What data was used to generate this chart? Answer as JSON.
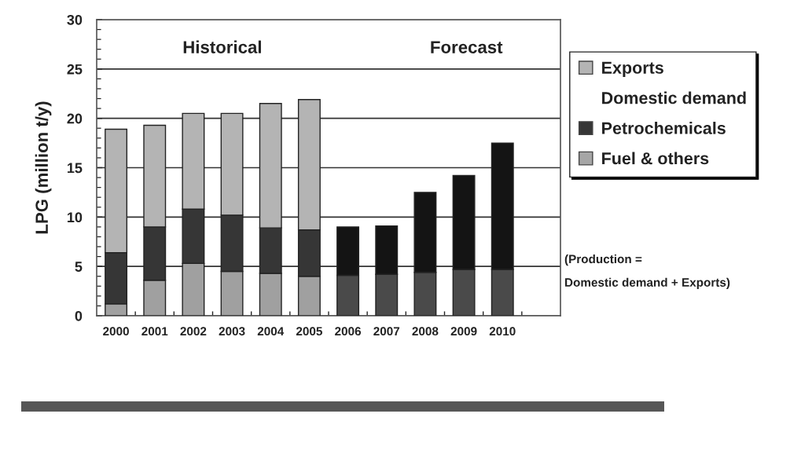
{
  "chart_data": {
    "type": "bar",
    "stacked": true,
    "categories": [
      "2000",
      "2001",
      "2002",
      "2003",
      "2004",
      "2005",
      "2006",
      "2007",
      "2008",
      "2009",
      "2010",
      null
    ],
    "ylabel": "LPG (million t/y)",
    "ylim": [
      0,
      30
    ],
    "yticks": [
      0,
      {
        "value": 1,
        "label": null
      },
      {
        "value": 2,
        "label": null
      },
      {
        "value": 3,
        "label": null
      },
      {
        "value": 4,
        "label": null
      },
      5,
      {
        "value": 6,
        "label": null
      },
      {
        "value": 7,
        "label": null
      },
      {
        "value": 8,
        "label": null
      },
      {
        "value": 9,
        "label": null
      },
      10,
      {
        "value": 11,
        "label": null
      },
      {
        "value": 12,
        "label": null
      },
      {
        "value": 13,
        "label": null
      },
      {
        "value": 14,
        "label": null
      },
      15,
      {
        "value": 16,
        "label": null
      },
      {
        "value": 17,
        "label": null
      },
      {
        "value": 18,
        "label": null
      },
      {
        "value": 19,
        "label": null
      },
      20,
      {
        "value": 21,
        "label": null
      },
      {
        "value": 22,
        "label": null
      },
      {
        "value": 23,
        "label": null
      },
      {
        "value": 24,
        "label": null
      },
      25,
      {
        "value": 26,
        "label": null
      },
      {
        "value": 27,
        "label": null
      },
      {
        "value": 28,
        "label": null
      },
      {
        "value": 29,
        "label": null
      },
      30
    ],
    "grid": "y",
    "legend": "right",
    "legend_title": "Domestic demand",
    "annotations": [
      "Historical",
      "Forecast",
      "(Production =\nDomestic demand + Exports)"
    ],
    "series": [
      {
        "name": "Fuel & others",
        "color": "#a6a6a6",
        "colors": [
          "#a0a0a0",
          "#a0a0a0",
          "#a0a0a0",
          "#a0a0a0",
          "#a0a0a0",
          "#a0a0a0",
          "#4a4a4a",
          "#4a4a4a",
          "#4a4a4a",
          "#4a4a4a",
          "#4a4a4a",
          null
        ],
        "values": [
          1.2,
          3.6,
          5.3,
          4.5,
          4.3,
          4.0,
          4.1,
          4.2,
          4.4,
          4.7,
          4.7,
          null
        ]
      },
      {
        "name": "Petrochemicals",
        "color": "#363636",
        "colors": [
          "#363636",
          "#363636",
          "#363636",
          "#363636",
          "#363636",
          "#363636",
          "#141414",
          "#141414",
          "#141414",
          "#141414",
          "#141414",
          null
        ],
        "values": [
          5.2,
          5.4,
          5.5,
          5.7,
          4.6,
          4.7,
          4.9,
          4.9,
          8.1,
          9.5,
          12.8,
          null
        ]
      },
      {
        "name": "Exports",
        "color": "#b4b4b4",
        "values": [
          12.5,
          10.3,
          9.7,
          10.3,
          12.6,
          13.2,
          null,
          null,
          null,
          null,
          null,
          null
        ]
      }
    ]
  }
}
